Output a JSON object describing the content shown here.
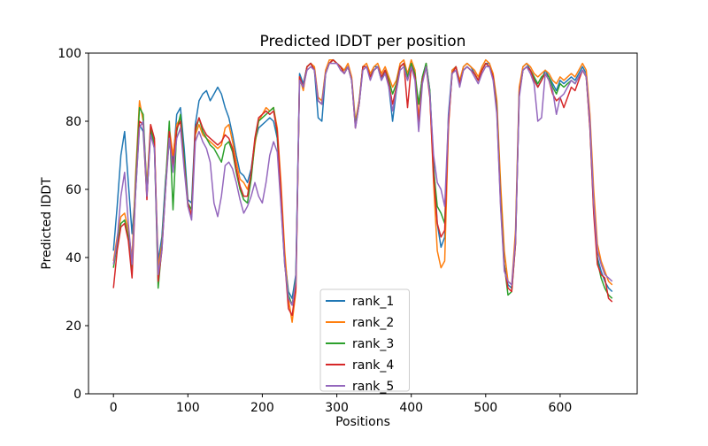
{
  "chart_data": {
    "type": "line",
    "title": "Predicted lDDT per position",
    "xlabel": "Positions",
    "ylabel": "Predicted lDDT",
    "xlim": [
      -33.5,
      703.5
    ],
    "ylim": [
      0,
      100
    ],
    "xticks": [
      0,
      100,
      200,
      300,
      400,
      500,
      600
    ],
    "yticks": [
      0,
      20,
      40,
      60,
      80,
      100
    ],
    "x_start": 0,
    "x_step": 5,
    "grid": false,
    "legend_position": "lower center",
    "axis_color": "#000000",
    "legend_border_color": "#cccccc",
    "background_color": "#ffffff",
    "series": [
      {
        "name": "rank_1",
        "color": "#1f77b4",
        "values": [
          42,
          55,
          70,
          77,
          62,
          47,
          60,
          79,
          77,
          58,
          77,
          72,
          39,
          46,
          63,
          74,
          68,
          82,
          84,
          72,
          57,
          56,
          79,
          86,
          88,
          89,
          86,
          88,
          90,
          88,
          84,
          81,
          76,
          70,
          65,
          64,
          62,
          66,
          74,
          78,
          79,
          80,
          81,
          80,
          75,
          58,
          40,
          30,
          28,
          35,
          94,
          91,
          96,
          97,
          95,
          81,
          80,
          94,
          97,
          98,
          97,
          96,
          95,
          96,
          92,
          79,
          86,
          96,
          96,
          93,
          96,
          96,
          92,
          95,
          90,
          80,
          89,
          96,
          97,
          92,
          97,
          93,
          85,
          93,
          97,
          89,
          68,
          50,
          43,
          46,
          82,
          95,
          96,
          91,
          96,
          97,
          96,
          94,
          92,
          95,
          97,
          97,
          93,
          84,
          58,
          38,
          32,
          31,
          46,
          89,
          96,
          97,
          95,
          93,
          90,
          92,
          95,
          93,
          91,
          89,
          92,
          91,
          92,
          93,
          92,
          94,
          96,
          94,
          78,
          54,
          40,
          36,
          33,
          31,
          30
        ]
      },
      {
        "name": "rank_2",
        "color": "#ff7f0e",
        "values": [
          39,
          46,
          52,
          53,
          48,
          40,
          65,
          86,
          80,
          61,
          79,
          74,
          37,
          44,
          61,
          78,
          70,
          79,
          81,
          68,
          55,
          53,
          76,
          79,
          76,
          75,
          74,
          73,
          72,
          73,
          78,
          79,
          74,
          68,
          63,
          62,
          60,
          64,
          73,
          80,
          82,
          84,
          83,
          84,
          78,
          62,
          42,
          28,
          21,
          30,
          93,
          89,
          96,
          97,
          96,
          87,
          86,
          95,
          98,
          98,
          97,
          96,
          95,
          97,
          93,
          80,
          86,
          96,
          97,
          94,
          96,
          97,
          94,
          96,
          93,
          90,
          92,
          97,
          98,
          94,
          98,
          95,
          81,
          92,
          97,
          88,
          62,
          42,
          37,
          39,
          78,
          95,
          96,
          92,
          96,
          97,
          96,
          95,
          93,
          96,
          98,
          97,
          94,
          86,
          62,
          42,
          33,
          32,
          48,
          90,
          96,
          97,
          96,
          94,
          93,
          94,
          95,
          94,
          92,
          91,
          93,
          92,
          93,
          94,
          93,
          95,
          97,
          95,
          82,
          60,
          44,
          39,
          36,
          33,
          32
        ]
      },
      {
        "name": "rank_3",
        "color": "#2ca02c",
        "values": [
          37,
          44,
          50,
          51,
          46,
          36,
          63,
          84,
          82,
          59,
          78,
          73,
          31,
          43,
          62,
          80,
          54,
          77,
          82,
          69,
          56,
          54,
          77,
          81,
          77,
          75,
          73,
          72,
          70,
          68,
          73,
          74,
          71,
          65,
          60,
          57,
          56,
          63,
          74,
          80,
          81,
          82,
          83,
          84,
          76,
          56,
          38,
          29,
          26,
          34,
          92,
          90,
          96,
          97,
          95,
          86,
          85,
          94,
          97,
          98,
          97,
          96,
          94,
          96,
          92,
          79,
          85,
          96,
          96,
          93,
          95,
          96,
          93,
          95,
          92,
          88,
          91,
          96,
          97,
          93,
          97,
          94,
          85,
          93,
          97,
          89,
          66,
          55,
          53,
          50,
          80,
          94,
          96,
          91,
          95,
          96,
          95,
          94,
          92,
          95,
          97,
          96,
          93,
          84,
          57,
          38,
          29,
          30,
          44,
          88,
          95,
          96,
          95,
          93,
          91,
          93,
          94,
          93,
          90,
          88,
          91,
          90,
          91,
          92,
          91,
          93,
          95,
          93,
          79,
          55,
          39,
          34,
          31,
          29,
          28
        ]
      },
      {
        "name": "rank_4",
        "color": "#d62728",
        "values": [
          31,
          42,
          49,
          50,
          45,
          34,
          61,
          80,
          79,
          57,
          79,
          75,
          33,
          42,
          60,
          77,
          66,
          78,
          80,
          67,
          56,
          52,
          78,
          81,
          78,
          76,
          75,
          74,
          73,
          74,
          76,
          75,
          72,
          66,
          61,
          58,
          58,
          65,
          75,
          81,
          82,
          83,
          82,
          83,
          77,
          59,
          39,
          25,
          23,
          31,
          93,
          90,
          96,
          97,
          95,
          86,
          85,
          94,
          97,
          98,
          97,
          96,
          94,
          96,
          92,
          78,
          85,
          96,
          96,
          93,
          95,
          96,
          93,
          95,
          91,
          85,
          90,
          96,
          97,
          84,
          96,
          93,
          79,
          92,
          96,
          87,
          64,
          50,
          46,
          48,
          79,
          94,
          96,
          91,
          95,
          96,
          95,
          94,
          92,
          95,
          97,
          96,
          93,
          83,
          56,
          37,
          31,
          30,
          44,
          88,
          95,
          96,
          95,
          92,
          90,
          92,
          94,
          92,
          88,
          86,
          87,
          84,
          87,
          90,
          89,
          92,
          95,
          93,
          78,
          53,
          38,
          35,
          34,
          28,
          27
        ]
      },
      {
        "name": "rank_5",
        "color": "#9467bd",
        "values": [
          38,
          45,
          58,
          65,
          50,
          38,
          60,
          78,
          80,
          58,
          76,
          72,
          35,
          42,
          60,
          75,
          65,
          75,
          78,
          66,
          55,
          51,
          74,
          77,
          74,
          72,
          68,
          56,
          52,
          58,
          67,
          68,
          66,
          62,
          57,
          53,
          55,
          58,
          62,
          58,
          56,
          62,
          70,
          74,
          71,
          55,
          38,
          28,
          26,
          33,
          92,
          90,
          95,
          96,
          95,
          86,
          85,
          94,
          97,
          97,
          97,
          95,
          94,
          96,
          92,
          78,
          85,
          95,
          96,
          92,
          95,
          96,
          92,
          94,
          90,
          83,
          89,
          95,
          96,
          92,
          96,
          92,
          77,
          91,
          96,
          88,
          70,
          62,
          60,
          55,
          81,
          94,
          95,
          90,
          95,
          96,
          95,
          93,
          91,
          94,
          96,
          96,
          92,
          82,
          55,
          36,
          33,
          32,
          45,
          87,
          95,
          96,
          94,
          91,
          80,
          81,
          94,
          92,
          89,
          82,
          87,
          88,
          90,
          92,
          91,
          93,
          95,
          93,
          80,
          56,
          42,
          38,
          35,
          34,
          33
        ]
      }
    ]
  }
}
